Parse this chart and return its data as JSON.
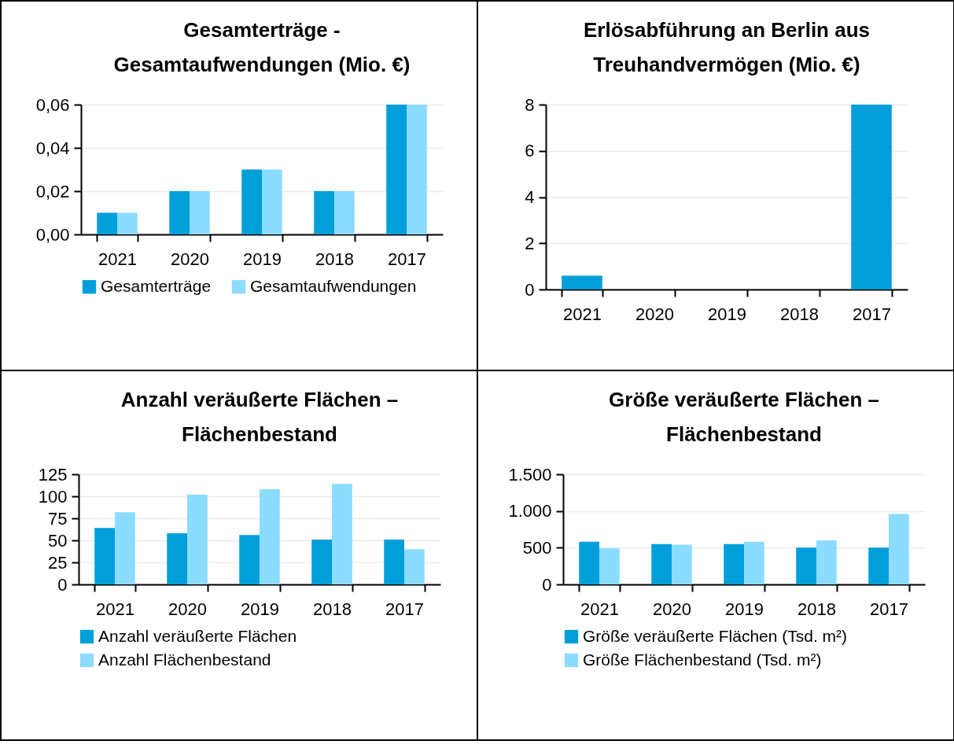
{
  "chart_data": [
    {
      "type": "bar",
      "title": "Gesamterträge - Gesamtaufwendungen (Mio. €)",
      "categories": [
        "2021",
        "2020",
        "2019",
        "2018",
        "2017"
      ],
      "series": [
        {
          "name": "Gesamterträge",
          "color": "#009fda",
          "values": [
            0.01,
            0.02,
            0.03,
            0.02,
            0.06
          ]
        },
        {
          "name": "Gesamtaufwendungen",
          "color": "#8bdcff",
          "values": [
            0.01,
            0.02,
            0.03,
            0.02,
            0.06
          ]
        }
      ],
      "ylim": [
        0,
        0.06
      ],
      "yticks": [
        {
          "value": 0,
          "label": "0,00"
        },
        {
          "value": 0.02,
          "label": "0,02"
        },
        {
          "value": 0.04,
          "label": "0,04"
        },
        {
          "value": 0.06,
          "label": "0,06"
        }
      ],
      "grid": "y",
      "legend": "bottom"
    },
    {
      "type": "bar",
      "title": "Erlösabführung an Berlin aus Treuhandvermögen (Mio. €)",
      "categories": [
        "2021",
        "2020",
        "2019",
        "2018",
        "2017"
      ],
      "series": [
        {
          "color": "#009fda",
          "values": [
            0.6,
            0,
            0,
            0,
            8
          ]
        }
      ],
      "ylim": [
        0,
        8
      ],
      "yticks": [
        0,
        2,
        4,
        6,
        8
      ],
      "grid": "y"
    },
    {
      "type": "bar",
      "title": "Anzahl veräußerte Flächen – Flächenbestand",
      "categories": [
        "2021",
        "2020",
        "2019",
        "2018",
        "2017"
      ],
      "series": [
        {
          "name": "Anzahl veräußerte Flächen",
          "color": "#009fda",
          "values": [
            64,
            58,
            56,
            51,
            51
          ]
        },
        {
          "name": "Anzahl Flächenbestand",
          "color": "#8bdcff",
          "values": [
            82,
            102,
            108,
            114,
            40
          ]
        }
      ],
      "ylim": [
        0,
        125
      ],
      "yticks": [
        0,
        25,
        50,
        75,
        100,
        125
      ],
      "grid": "y",
      "legend": "bottom"
    },
    {
      "type": "bar",
      "title": "Größe veräußerte Flächen – Flächenbestand",
      "categories": [
        "2021",
        "2020",
        "2019",
        "2018",
        "2017"
      ],
      "series": [
        {
          "name": "Größe veräußerte Flächen (Tsd. m²)",
          "color": "#009fda",
          "values": [
            580,
            550,
            550,
            500,
            500
          ]
        },
        {
          "name": "Größe Flächenbestand (Tsd. m²)",
          "color": "#8bdcff",
          "values": [
            490,
            540,
            580,
            600,
            960
          ]
        }
      ],
      "ylim": [
        0,
        1500
      ],
      "yticks": [
        0,
        {
          "value": 500,
          "label": "500"
        },
        {
          "value": 1000,
          "label": "1.000"
        },
        {
          "value": 1500,
          "label": "1.500"
        }
      ],
      "grid": "y",
      "legend": "bottom"
    }
  ]
}
